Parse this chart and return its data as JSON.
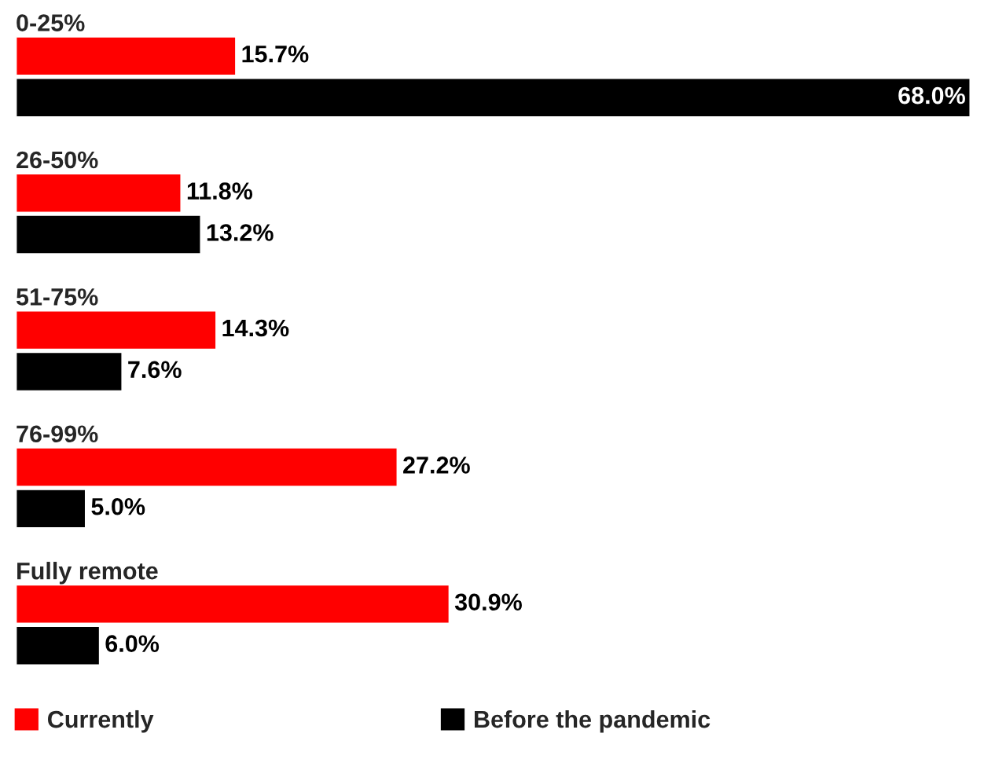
{
  "chart_data": {
    "type": "bar",
    "orientation": "horizontal",
    "legend": "bottom",
    "categories": [
      "0-25%",
      "26-50%",
      "51-75%",
      "76-99%",
      "Fully remote"
    ],
    "series": [
      {
        "name": "Currently",
        "color": "#ff0000",
        "values": [
          15.7,
          11.8,
          14.3,
          27.2,
          30.9
        ],
        "value_labels": [
          "15.7%",
          "11.8%",
          "14.3%",
          "27.2%",
          "30.9%"
        ]
      },
      {
        "name": "Before the pandemic",
        "color": "#000000",
        "values": [
          68.0,
          13.2,
          7.6,
          5.0,
          6.0
        ],
        "value_labels": [
          "68.0%",
          "13.2%",
          "7.6%",
          "5.0%",
          "6.0%"
        ]
      }
    ]
  }
}
